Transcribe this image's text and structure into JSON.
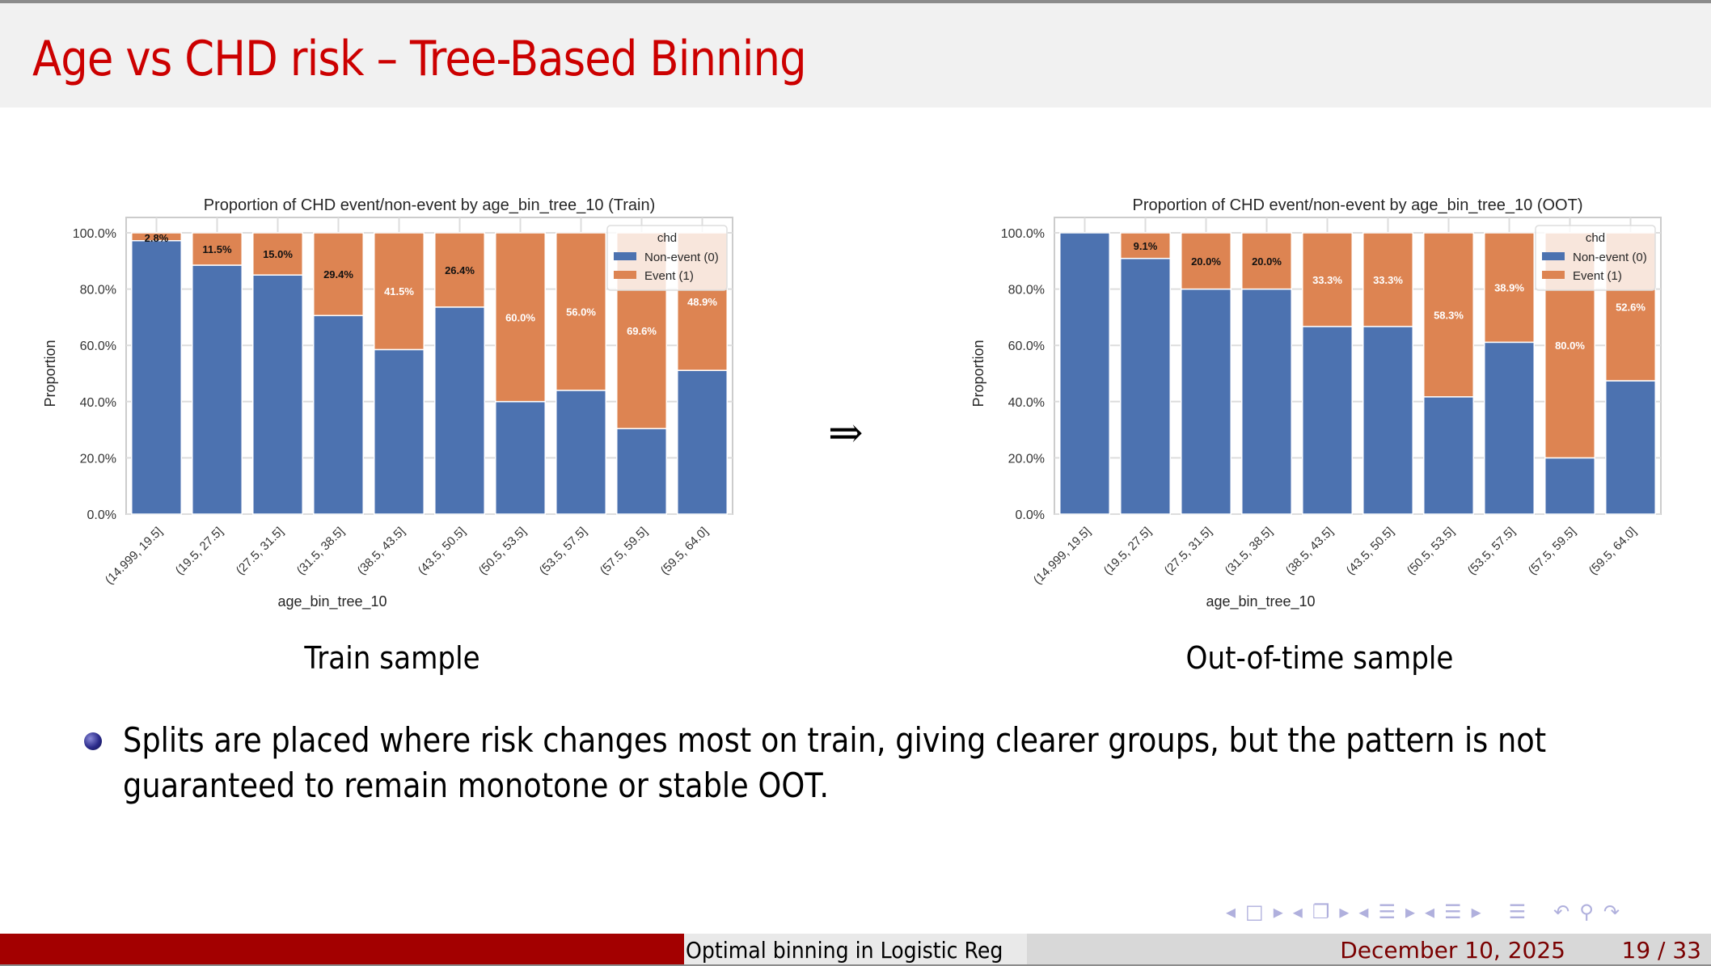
{
  "slide": {
    "title": "Age vs CHD risk – Tree-Based Binning",
    "arrow": "⇒",
    "captions": {
      "train": "Train sample",
      "oot": "Out-of-time sample"
    },
    "bullet": "Splits are placed where risk changes most on train, giving clearer groups, but the pattern is not guaranteed to remain monotone or stable OOT.",
    "footer": {
      "short_title": "Optimal binning in Logistic Reg",
      "date": "December 10, 2025",
      "page": "19 / 33"
    },
    "nav_icons": [
      "nav-left-frame",
      "frame-icon",
      "nav-right-frame",
      "nav-left-subsection",
      "subsection-icon",
      "nav-right-subsection",
      "nav-left-section",
      "section-icon",
      "nav-right-section",
      "align-icon",
      "back-icon",
      "search-icon",
      "forward-icon"
    ]
  },
  "colors": {
    "title": "#cc0000",
    "non_event": "#4c72b0",
    "event": "#dd8452",
    "footer_red": "#a30000",
    "footer_text": "#7a0000"
  },
  "chart_data": [
    {
      "type": "bar",
      "stacked": true,
      "title": "Proportion of CHD event/non-event by age_bin_tree_10 (Train)",
      "xlabel": "age_bin_tree_10",
      "ylabel": "Proportion",
      "ylim": [
        0,
        1
      ],
      "yticks": [
        "0.0%",
        "20.0%",
        "40.0%",
        "60.0%",
        "80.0%",
        "100.0%"
      ],
      "grid": true,
      "legend": {
        "title": "chd",
        "position": "upper right",
        "entries": [
          "Non-event (0)",
          "Event (1)"
        ]
      },
      "categories": [
        "(14.999, 19.5]",
        "(19.5, 27.5]",
        "(27.5, 31.5]",
        "(31.5, 38.5]",
        "(38.5, 43.5]",
        "(43.5, 50.5]",
        "(50.5, 53.5]",
        "(53.5, 57.5]",
        "(57.5, 59.5]",
        "(59.5, 64.0]"
      ],
      "series": [
        {
          "name": "Non-event (0)",
          "values": [
            97.2,
            88.5,
            85.0,
            70.6,
            58.5,
            73.6,
            40.0,
            44.0,
            30.4,
            51.1
          ]
        },
        {
          "name": "Event (1)",
          "values": [
            2.8,
            11.5,
            15.0,
            29.4,
            41.5,
            26.4,
            60.0,
            56.0,
            69.6,
            48.9
          ]
        }
      ],
      "labels": [
        "2.8%",
        "11.5%",
        "15.0%",
        "29.4%",
        "41.5%",
        "26.4%",
        "60.0%",
        "56.0%",
        "69.6%",
        "48.9%"
      ]
    },
    {
      "type": "bar",
      "stacked": true,
      "title": "Proportion of CHD event/non-event by age_bin_tree_10 (OOT)",
      "xlabel": "age_bin_tree_10",
      "ylabel": "Proportion",
      "ylim": [
        0,
        1
      ],
      "yticks": [
        "0.0%",
        "20.0%",
        "40.0%",
        "60.0%",
        "80.0%",
        "100.0%"
      ],
      "grid": true,
      "legend": {
        "title": "chd",
        "position": "upper right",
        "entries": [
          "Non-event (0)",
          "Event (1)"
        ]
      },
      "categories": [
        "(14.999, 19.5]",
        "(19.5, 27.5]",
        "(27.5, 31.5]",
        "(31.5, 38.5]",
        "(38.5, 43.5]",
        "(43.5, 50.5]",
        "(50.5, 53.5]",
        "(53.5, 57.5]",
        "(57.5, 59.5]",
        "(59.5, 64.0]"
      ],
      "series": [
        {
          "name": "Non-event (0)",
          "values": [
            100.0,
            90.9,
            80.0,
            80.0,
            66.7,
            66.7,
            41.7,
            61.1,
            20.0,
            47.4
          ]
        },
        {
          "name": "Event (1)",
          "values": [
            0.0,
            9.1,
            20.0,
            20.0,
            33.3,
            33.3,
            58.3,
            38.9,
            80.0,
            52.6
          ]
        }
      ],
      "labels": [
        "",
        "9.1%",
        "20.0%",
        "20.0%",
        "33.3%",
        "33.3%",
        "58.3%",
        "38.9%",
        "80.0%",
        "52.6%"
      ]
    }
  ]
}
